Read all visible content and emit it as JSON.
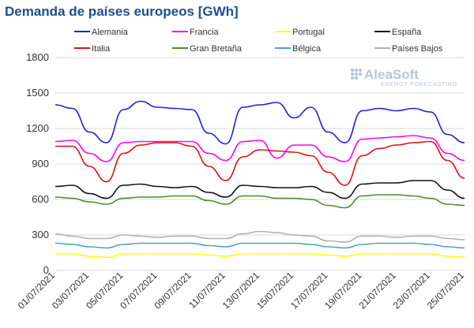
{
  "chart_data": {
    "type": "line",
    "title": "Demanda de países europeos [GWh]",
    "xlabel": "",
    "ylabel": "",
    "ylim": [
      0,
      1800
    ],
    "yticks": [
      0,
      300,
      600,
      900,
      1200,
      1500,
      1800
    ],
    "grid": true,
    "legend_position": "top",
    "x": [
      "01/07/2021",
      "02/07/2021",
      "03/07/2021",
      "04/07/2021",
      "05/07/2021",
      "06/07/2021",
      "07/07/2021",
      "08/07/2021",
      "09/07/2021",
      "10/07/2021",
      "11/07/2021",
      "12/07/2021",
      "13/07/2021",
      "14/07/2021",
      "15/07/2021",
      "16/07/2021",
      "17/07/2021",
      "18/07/2021",
      "19/07/2021",
      "20/07/2021",
      "21/07/2021",
      "22/07/2021",
      "23/07/2021",
      "24/07/2021",
      "25/07/2021"
    ],
    "x_tick_labels": [
      "01/07/2021",
      "03/07/2021",
      "05/07/2021",
      "07/07/2021",
      "09/07/2021",
      "11/07/2021",
      "13/07/2021",
      "15/07/2021",
      "17/07/2021",
      "19/07/2021",
      "21/07/2021",
      "23/07/2021",
      "25/07/2021"
    ],
    "series": [
      {
        "name": "Alemania",
        "color": "#1f1fdb",
        "values": [
          1400,
          1370,
          1170,
          1080,
          1360,
          1430,
          1380,
          1370,
          1360,
          1160,
          1070,
          1380,
          1400,
          1420,
          1290,
          1380,
          1170,
          1080,
          1350,
          1370,
          1350,
          1370,
          1340,
          1150,
          1080
        ]
      },
      {
        "name": "Francia",
        "color": "#ff00ff",
        "values": [
          1090,
          1100,
          990,
          920,
          1080,
          1090,
          1090,
          1090,
          1090,
          990,
          930,
          1090,
          1100,
          950,
          1060,
          1060,
          960,
          920,
          1110,
          1120,
          1130,
          1140,
          1120,
          990,
          930
        ]
      },
      {
        "name": "Portugal",
        "color": "#ffff00",
        "values": [
          140,
          140,
          120,
          110,
          140,
          140,
          140,
          140,
          140,
          130,
          120,
          140,
          140,
          140,
          140,
          140,
          130,
          120,
          140,
          140,
          140,
          140,
          140,
          120,
          110
        ]
      },
      {
        "name": "España",
        "color": "#111111",
        "values": [
          710,
          720,
          650,
          610,
          720,
          730,
          710,
          700,
          710,
          660,
          620,
          720,
          710,
          700,
          700,
          710,
          660,
          610,
          730,
          740,
          740,
          760,
          760,
          680,
          610
        ]
      },
      {
        "name": "Italia",
        "color": "#e01010",
        "values": [
          1050,
          1050,
          880,
          750,
          990,
          1060,
          1080,
          1080,
          1050,
          880,
          760,
          960,
          1020,
          1010,
          1000,
          970,
          830,
          720,
          970,
          1030,
          1060,
          1080,
          1090,
          930,
          780
        ]
      },
      {
        "name": "Gran Bretaña",
        "color": "#4e8a2e",
        "values": [
          620,
          610,
          580,
          560,
          610,
          620,
          620,
          630,
          630,
          590,
          560,
          630,
          630,
          610,
          610,
          600,
          550,
          530,
          630,
          640,
          640,
          630,
          610,
          560,
          550
        ]
      },
      {
        "name": "Bélgica",
        "color": "#4aa0c8",
        "values": [
          230,
          220,
          200,
          190,
          220,
          230,
          230,
          230,
          230,
          210,
          200,
          230,
          230,
          230,
          230,
          220,
          200,
          190,
          220,
          230,
          230,
          230,
          220,
          200,
          190
        ]
      },
      {
        "name": "Países Bajos",
        "color": "#b0b0b0",
        "values": [
          310,
          290,
          270,
          270,
          300,
          290,
          280,
          290,
          290,
          270,
          270,
          310,
          330,
          320,
          300,
          290,
          250,
          240,
          290,
          290,
          280,
          290,
          290,
          270,
          260
        ]
      }
    ]
  },
  "logo": {
    "name": "AleaSoft",
    "tagline": "ENERGY FORECASTING"
  }
}
